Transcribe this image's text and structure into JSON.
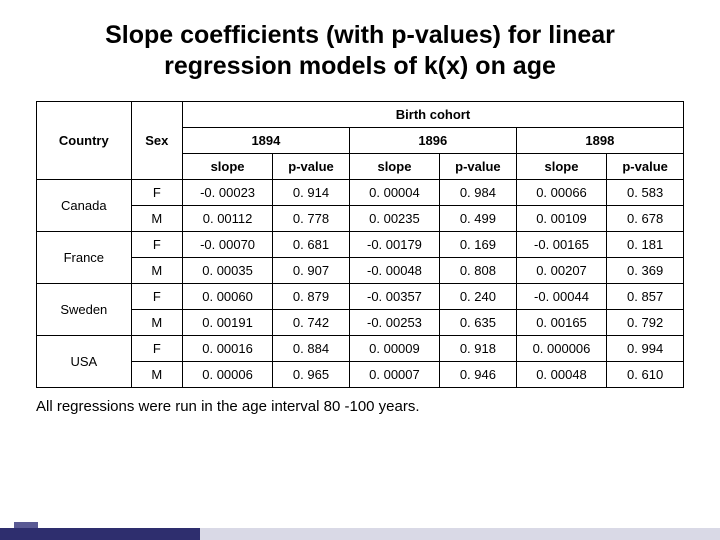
{
  "title": "Slope coefficients (with p-values) for linear regression models of k(x) on age",
  "headers": {
    "country": "Country",
    "sex": "Sex",
    "cohort_span": "Birth cohort",
    "years": [
      "1894",
      "1896",
      "1898"
    ],
    "slope": "slope",
    "pvalue": "p-value"
  },
  "table": {
    "columns": [
      "country",
      "sex",
      "slope_1894",
      "pv_1894",
      "slope_1896",
      "pv_1896",
      "slope_1898",
      "pv_1898"
    ],
    "countries": [
      {
        "name": "Canada",
        "rows": [
          {
            "sex": "F",
            "slope_1894": "-0. 00023",
            "pv_1894": "0. 914",
            "slope_1896": "0. 00004",
            "pv_1896": "0. 984",
            "slope_1898": "0. 00066",
            "pv_1898": "0. 583"
          },
          {
            "sex": "M",
            "slope_1894": "0. 00112",
            "pv_1894": "0. 778",
            "slope_1896": "0. 00235",
            "pv_1896": "0. 499",
            "slope_1898": "0. 00109",
            "pv_1898": "0. 678"
          }
        ]
      },
      {
        "name": "France",
        "rows": [
          {
            "sex": "F",
            "slope_1894": "-0. 00070",
            "pv_1894": "0. 681",
            "slope_1896": "-0. 00179",
            "pv_1896": "0. 169",
            "slope_1898": "-0. 00165",
            "pv_1898": "0. 181"
          },
          {
            "sex": "M",
            "slope_1894": "0. 00035",
            "pv_1894": "0. 907",
            "slope_1896": "-0. 00048",
            "pv_1896": "0. 808",
            "slope_1898": "0. 00207",
            "pv_1898": "0. 369"
          }
        ]
      },
      {
        "name": "Sweden",
        "rows": [
          {
            "sex": "F",
            "slope_1894": "0. 00060",
            "pv_1894": "0. 879",
            "slope_1896": "-0. 00357",
            "pv_1896": "0. 240",
            "slope_1898": "-0. 00044",
            "pv_1898": "0. 857"
          },
          {
            "sex": "M",
            "slope_1894": "0. 00191",
            "pv_1894": "0. 742",
            "slope_1896": "-0. 00253",
            "pv_1896": "0. 635",
            "slope_1898": "0. 00165",
            "pv_1898": "0. 792"
          }
        ]
      },
      {
        "name": "USA",
        "rows": [
          {
            "sex": "F",
            "slope_1894": "0. 00016",
            "pv_1894": "0. 884",
            "slope_1896": "0. 00009",
            "pv_1896": "0. 918",
            "slope_1898": "0. 000006",
            "pv_1898": "0. 994"
          },
          {
            "sex": "M",
            "slope_1894": "0. 00006",
            "pv_1894": "0. 965",
            "slope_1896": "0. 00007",
            "pv_1896": "0. 946",
            "slope_1898": "0. 00048",
            "pv_1898": "0. 610"
          }
        ]
      }
    ]
  },
  "footnote": "All regressions were run in the age interval 80 -100 years.",
  "style": {
    "title_fontsize": 25,
    "cell_fontsize": 13,
    "footnote_fontsize": 15,
    "border_color": "#000000",
    "background": "#ffffff",
    "frame_light": "#d9d9e6",
    "frame_dark": "#2e2e6e",
    "frame_stub": "#5a5a94"
  }
}
